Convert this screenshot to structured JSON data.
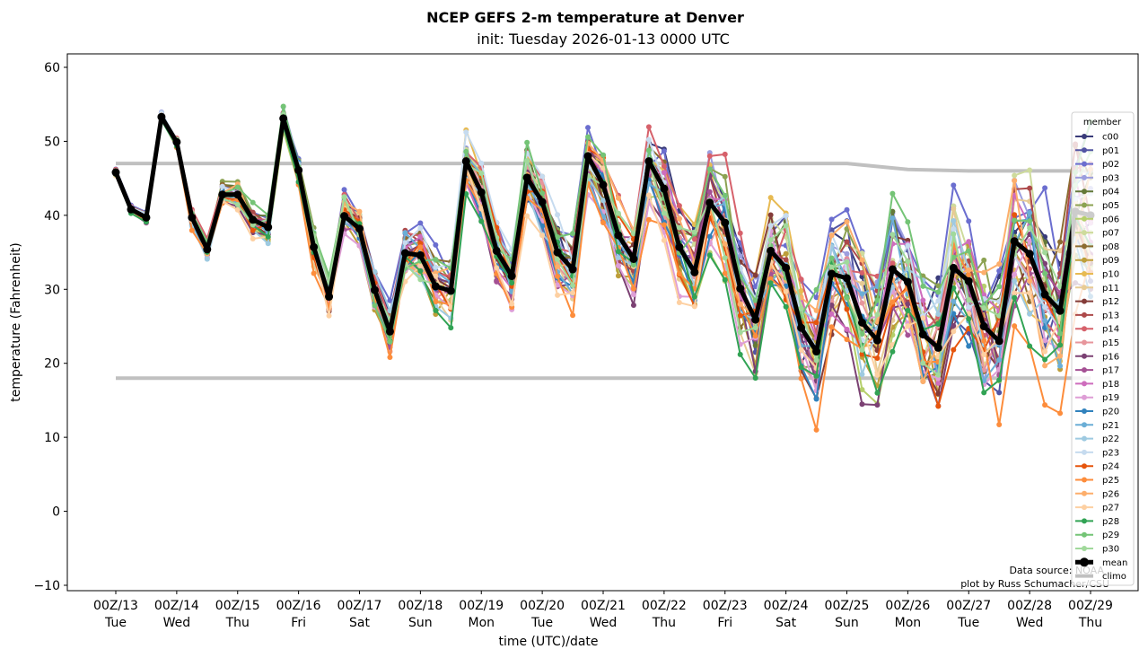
{
  "chart_data": {
    "type": "line",
    "title": "NCEP GEFS 2-m temperature at Denver",
    "subtitle": "init: Tuesday 2026-01-13 0000 UTC",
    "xlabel": "time (UTC)/date",
    "ylabel": "temperature (Fahrenheit)",
    "ylim": [
      -10.5,
      62
    ],
    "yticks": [
      -10,
      0,
      10,
      20,
      30,
      40,
      50,
      60
    ],
    "x_unit": "forecast hour",
    "xlim_hours": [
      -18,
      402
    ],
    "x_step_hours": 6,
    "xticks": [
      {
        "hour": 0,
        "label1": "00Z/13",
        "label2": "Tue"
      },
      {
        "hour": 24,
        "label1": "00Z/14",
        "label2": "Wed"
      },
      {
        "hour": 48,
        "label1": "00Z/15",
        "label2": "Thu"
      },
      {
        "hour": 72,
        "label1": "00Z/16",
        "label2": "Fri"
      },
      {
        "hour": 96,
        "label1": "00Z/17",
        "label2": "Sat"
      },
      {
        "hour": 120,
        "label1": "00Z/18",
        "label2": "Sun"
      },
      {
        "hour": 144,
        "label1": "00Z/19",
        "label2": "Mon"
      },
      {
        "hour": 168,
        "label1": "00Z/20",
        "label2": "Tue"
      },
      {
        "hour": 192,
        "label1": "00Z/21",
        "label2": "Wed"
      },
      {
        "hour": 216,
        "label1": "00Z/22",
        "label2": "Thu"
      },
      {
        "hour": 240,
        "label1": "00Z/23",
        "label2": "Fri"
      },
      {
        "hour": 264,
        "label1": "00Z/24",
        "label2": "Sat"
      },
      {
        "hour": 288,
        "label1": "00Z/25",
        "label2": "Sun"
      },
      {
        "hour": 312,
        "label1": "00Z/26",
        "label2": "Mon"
      },
      {
        "hour": 336,
        "label1": "00Z/27",
        "label2": "Tue"
      },
      {
        "hour": 360,
        "label1": "00Z/28",
        "label2": "Wed"
      },
      {
        "hour": 384,
        "label1": "00Z/29",
        "label2": "Thu"
      }
    ],
    "legend": {
      "title": "member",
      "position": "right"
    },
    "mean": {
      "name": "mean",
      "color": "#000000",
      "values": [
        45.8,
        40.8,
        39.7,
        53.3,
        49.9,
        39.7,
        35.4,
        42.8,
        42.8,
        39.4,
        38.4,
        53.1,
        46.1,
        35.7,
        29.0,
        39.9,
        38.2,
        29.9,
        24.3,
        34.9,
        34.6,
        30.4,
        29.8,
        47.3,
        43.1,
        35.2,
        31.8,
        45.1,
        41.8,
        35.0,
        32.7,
        48.0,
        44.1,
        37.3,
        34.1,
        47.3,
        43.6,
        35.7,
        32.3,
        41.7,
        39.0,
        30.1,
        25.9,
        35.2,
        32.9,
        24.8,
        21.6,
        32.1,
        31.5,
        25.5,
        23.1,
        32.7,
        31.0,
        23.9,
        22.1,
        32.9,
        31.1,
        25.0,
        23.0,
        36.5,
        34.8,
        29.3,
        27.1,
        40.5,
        40.0
      ]
    },
    "climo": {
      "name": "climo",
      "color": "#c0c0c0",
      "hours": [
        0,
        288,
        312,
        336,
        384
      ],
      "high": [
        47,
        47,
        46.2,
        46,
        46
      ],
      "low": [
        18,
        18,
        18,
        18,
        18
      ]
    },
    "spread": [
      0.4,
      0.6,
      0.8,
      0.7,
      1.0,
      1.5,
      1.6,
      1.8,
      2.0,
      2.2,
      2.4,
      1.8,
      2.5,
      3.0,
      3.0,
      3.5,
      3.8,
      4.0,
      4.2,
      5.0,
      5.0,
      5.0,
      5.0,
      4.5,
      4.5,
      5.0,
      5.0,
      5.5,
      5.5,
      5.5,
      5.5,
      5.5,
      6.0,
      6.0,
      6.0,
      6.5,
      6.5,
      7.0,
      7.0,
      8.0,
      8.0,
      8.5,
      9.0,
      9.0,
      9.0,
      9.5,
      9.5,
      10.0,
      10.0,
      10.5,
      10.5,
      11.0,
      11.0,
      11.5,
      11.5,
      12.0,
      12.0,
      12.0,
      12.0,
      12.5,
      12.5,
      13.0,
      13.0,
      13.0,
      13.0
    ],
    "members": [
      {
        "name": "c00",
        "color": "#393b79",
        "offset": 0.5
      },
      {
        "name": "p01",
        "color": "#5254a3",
        "offset": 0.2
      },
      {
        "name": "p02",
        "color": "#6b6ecf",
        "offset": 1.2
      },
      {
        "name": "p03",
        "color": "#9c9ede",
        "offset": 0.3
      },
      {
        "name": "p04",
        "color": "#637939",
        "offset": 0.4
      },
      {
        "name": "p05",
        "color": "#8ca252",
        "offset": 0.6
      },
      {
        "name": "p06",
        "color": "#b5cf6b",
        "offset": -0.5
      },
      {
        "name": "p07",
        "color": "#cedb9c",
        "offset": 0.7
      },
      {
        "name": "p08",
        "color": "#8c6d31",
        "offset": 0.1
      },
      {
        "name": "p09",
        "color": "#bd9e39",
        "offset": -0.7
      },
      {
        "name": "p10",
        "color": "#e7ba52",
        "offset": 0.4
      },
      {
        "name": "p11",
        "color": "#e7cb94",
        "offset": -0.3
      },
      {
        "name": "p12",
        "color": "#843c39",
        "offset": -0.2
      },
      {
        "name": "p13",
        "color": "#ad494a",
        "offset": 0.5
      },
      {
        "name": "p14",
        "color": "#d6616b",
        "offset": 1.1
      },
      {
        "name": "p15",
        "color": "#e7969c",
        "offset": 0.0
      },
      {
        "name": "p16",
        "color": "#7b4173",
        "offset": -0.8
      },
      {
        "name": "p17",
        "color": "#a55194",
        "offset": -0.4
      },
      {
        "name": "p18",
        "color": "#ce6dbd",
        "offset": -0.1
      },
      {
        "name": "p19",
        "color": "#de9ed6",
        "offset": -0.9
      },
      {
        "name": "p20",
        "color": "#3182bd",
        "offset": -0.6
      },
      {
        "name": "p21",
        "color": "#6baed6",
        "offset": -0.2
      },
      {
        "name": "p22",
        "color": "#9ecae1",
        "offset": -0.3
      },
      {
        "name": "p23",
        "color": "#c6dbef",
        "offset": 0.8
      },
      {
        "name": "p24",
        "color": "#e6550d",
        "offset": -0.4
      },
      {
        "name": "p25",
        "color": "#fd8d3c",
        "offset": -1.4
      },
      {
        "name": "p26",
        "color": "#fdae6b",
        "offset": 0.3
      },
      {
        "name": "p27",
        "color": "#fdd0a2",
        "offset": -1.1
      },
      {
        "name": "p28",
        "color": "#31a354",
        "offset": -1.0
      },
      {
        "name": "p29",
        "color": "#74c476",
        "offset": 0.9
      },
      {
        "name": "p30",
        "color": "#a1d99b",
        "offset": 0.2
      }
    ],
    "annotations": [
      "Data source: NOAA",
      "plot by Russ Schumacher/CSU"
    ]
  }
}
